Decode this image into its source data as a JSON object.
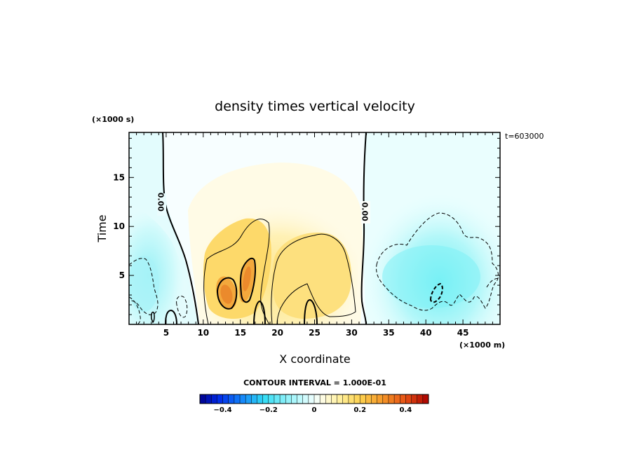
{
  "chart_data": {
    "type": "heatmap",
    "title": "density times vertical velocity",
    "xlabel": "X coordinate",
    "ylabel": "Time",
    "x_unit": "(×1000 m)",
    "y_unit": "(×1000 s)",
    "time_stamp": "t=603000",
    "xlim": [
      0,
      50
    ],
    "ylim": [
      0,
      19.6
    ],
    "x_ticks": [
      5,
      10,
      15,
      20,
      25,
      30,
      35,
      40,
      45
    ],
    "y_ticks": [
      5,
      10,
      15
    ],
    "contour_interval_text": "CONTOUR INTERVAL = 1.000E-01",
    "contour_labels": [
      {
        "text": "0.00",
        "x": 4.3,
        "y": 12.5
      },
      {
        "text": "0.00",
        "x": 31.8,
        "y": 11.5
      }
    ],
    "colorbar": {
      "min": -0.5,
      "max": 0.5,
      "steps": 40,
      "tick_values": [
        -0.4,
        -0.2,
        0,
        0.2,
        0.4
      ],
      "tick_labels": [
        "−0.4",
        "−0.2",
        "0",
        "0.2",
        "0.4"
      ]
    },
    "features": [
      {
        "kind": "positive-region",
        "x": [
          [
            9.5,
            31.0
          ]
        ],
        "y": [
          0,
          15
        ]
      },
      {
        "kind": "negative-region",
        "x": [
          [
            0,
            9.0
          ],
          [
            32.5,
            50
          ]
        ],
        "y": [
          0,
          19.6
        ]
      },
      {
        "kind": "maximum",
        "x": 13.5,
        "y": 3.5,
        "value": 0.3
      },
      {
        "kind": "maximum",
        "x": 16.0,
        "y": 5.2,
        "value": 0.3
      },
      {
        "kind": "minimum",
        "x": 41.3,
        "y": 3.4,
        "value": -0.2
      }
    ],
    "grid": false,
    "legend": "colorbar-bottom"
  }
}
